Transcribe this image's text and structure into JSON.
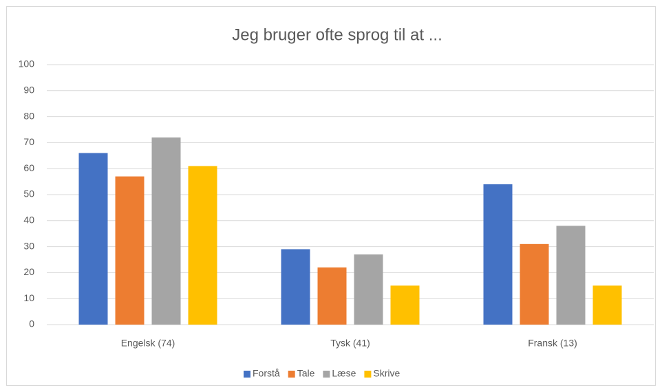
{
  "chart_data": {
    "type": "bar",
    "title": "Jeg bruger ofte sprog til at ...",
    "categories": [
      "Engelsk (74)",
      "Tysk (41)",
      "Fransk (13)"
    ],
    "series": [
      {
        "name": "Forstå",
        "color": "#4472c4",
        "values": [
          66,
          29,
          54
        ]
      },
      {
        "name": "Tale",
        "color": "#ed7d31",
        "values": [
          57,
          22,
          31
        ]
      },
      {
        "name": "Læse",
        "color": "#a5a5a5",
        "values": [
          72,
          27,
          38
        ]
      },
      {
        "name": "Skrive",
        "color": "#ffc000",
        "values": [
          61,
          15,
          15
        ]
      }
    ],
    "ylim": [
      0,
      100
    ],
    "yticks": [
      0,
      10,
      20,
      30,
      40,
      50,
      60,
      70,
      80,
      90,
      100
    ],
    "grid": true,
    "legend": "bottom"
  }
}
